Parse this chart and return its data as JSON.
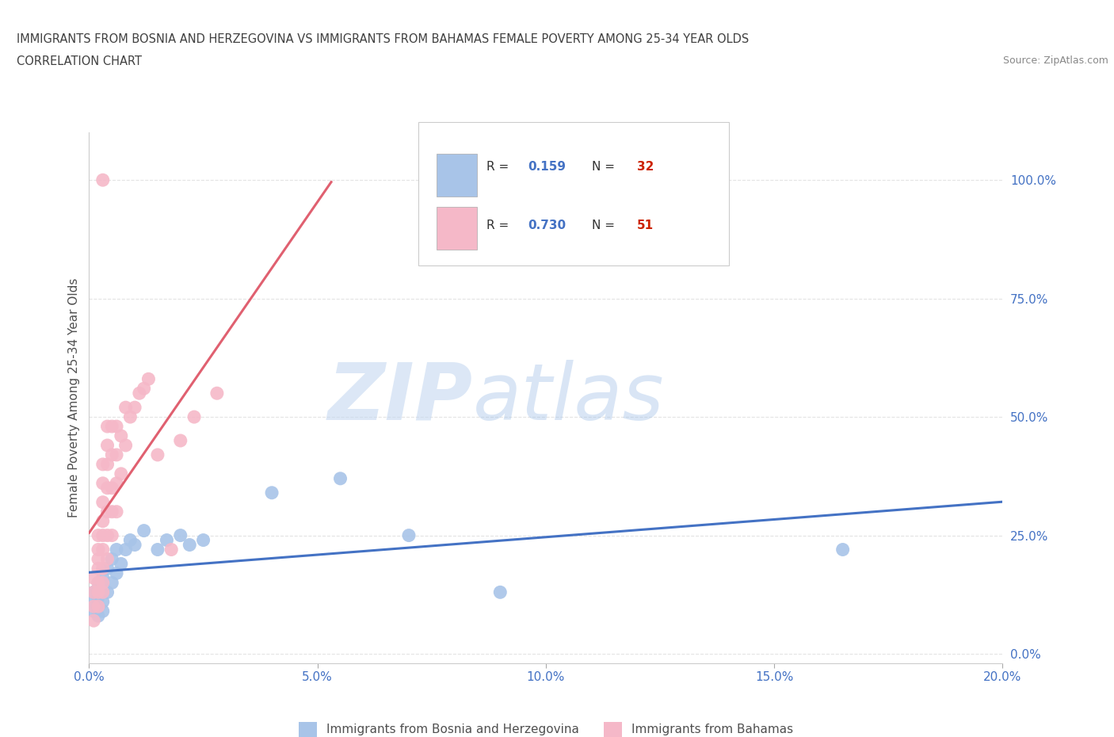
{
  "title_line1": "IMMIGRANTS FROM BOSNIA AND HERZEGOVINA VS IMMIGRANTS FROM BAHAMAS FEMALE POVERTY AMONG 25-34 YEAR OLDS",
  "title_line2": "CORRELATION CHART",
  "source_text": "Source: ZipAtlas.com",
  "ylabel": "Female Poverty Among 25-34 Year Olds",
  "xlim": [
    0.0,
    0.2
  ],
  "ylim": [
    -0.02,
    1.1
  ],
  "xticks": [
    0.0,
    0.05,
    0.1,
    0.15,
    0.2
  ],
  "xtick_labels": [
    "0.0%",
    "5.0%",
    "10.0%",
    "15.0%",
    "20.0%"
  ],
  "ytick_positions": [
    0.0,
    0.25,
    0.5,
    0.75,
    1.0
  ],
  "ytick_labels": [
    "0.0%",
    "25.0%",
    "50.0%",
    "75.0%",
    "100.0%"
  ],
  "watermark_ZIP": "ZIP",
  "watermark_atlas": "atlas",
  "legend_R1": "0.159",
  "legend_N1": "32",
  "legend_R2": "0.730",
  "legend_N2": "51",
  "series1_label": "Immigrants from Bosnia and Herzegovina",
  "series2_label": "Immigrants from Bahamas",
  "series1_color": "#a8c4e8",
  "series2_color": "#f5b8c8",
  "series1_line_color": "#4472c4",
  "series2_line_color": "#e06070",
  "background_color": "#ffffff",
  "grid_color": "#dddddd",
  "title_color": "#404040",
  "axis_label_color": "#505050",
  "tick_label_color": "#4472c4",
  "legend_text_color": "#333333",
  "legend_val_color": "#4472c4",
  "blue_x": [
    0.001,
    0.001,
    0.001,
    0.002,
    0.002,
    0.002,
    0.002,
    0.003,
    0.003,
    0.003,
    0.003,
    0.004,
    0.004,
    0.005,
    0.005,
    0.006,
    0.006,
    0.007,
    0.008,
    0.009,
    0.01,
    0.012,
    0.015,
    0.017,
    0.02,
    0.022,
    0.025,
    0.04,
    0.055,
    0.07,
    0.09,
    0.165
  ],
  "blue_y": [
    0.11,
    0.09,
    0.13,
    0.1,
    0.12,
    0.08,
    0.15,
    0.11,
    0.14,
    0.09,
    0.16,
    0.13,
    0.18,
    0.15,
    0.2,
    0.17,
    0.22,
    0.19,
    0.22,
    0.24,
    0.23,
    0.26,
    0.22,
    0.24,
    0.25,
    0.23,
    0.24,
    0.34,
    0.37,
    0.25,
    0.13,
    0.22
  ],
  "pink_x": [
    0.001,
    0.001,
    0.001,
    0.001,
    0.002,
    0.002,
    0.002,
    0.002,
    0.002,
    0.002,
    0.002,
    0.003,
    0.003,
    0.003,
    0.003,
    0.003,
    0.003,
    0.003,
    0.003,
    0.003,
    0.004,
    0.004,
    0.004,
    0.004,
    0.004,
    0.004,
    0.004,
    0.005,
    0.005,
    0.005,
    0.005,
    0.005,
    0.006,
    0.006,
    0.006,
    0.006,
    0.007,
    0.007,
    0.008,
    0.008,
    0.009,
    0.01,
    0.011,
    0.012,
    0.013,
    0.015,
    0.018,
    0.02,
    0.023,
    0.028,
    0.003
  ],
  "pink_y": [
    0.07,
    0.1,
    0.13,
    0.16,
    0.1,
    0.13,
    0.15,
    0.18,
    0.2,
    0.22,
    0.25,
    0.13,
    0.15,
    0.18,
    0.22,
    0.25,
    0.28,
    0.32,
    0.36,
    0.4,
    0.2,
    0.25,
    0.3,
    0.35,
    0.4,
    0.44,
    0.48,
    0.25,
    0.3,
    0.35,
    0.42,
    0.48,
    0.3,
    0.36,
    0.42,
    0.48,
    0.38,
    0.46,
    0.44,
    0.52,
    0.5,
    0.52,
    0.55,
    0.56,
    0.58,
    0.42,
    0.22,
    0.45,
    0.5,
    0.55,
    1.0
  ],
  "pink_line_x": [
    0.0,
    0.053
  ],
  "blue_line_x": [
    0.0,
    0.2
  ]
}
